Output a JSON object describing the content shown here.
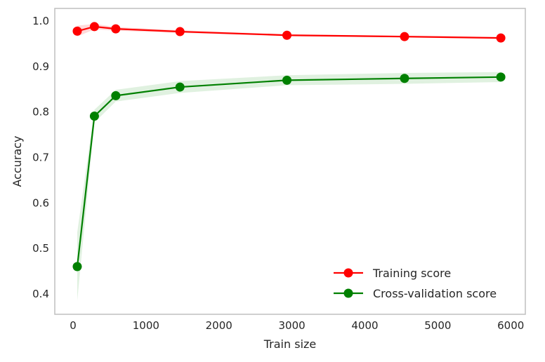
{
  "chart_data": {
    "type": "line",
    "title": "",
    "xlabel": "Train size",
    "ylabel": "Accuracy",
    "xlim": [
      -250,
      6200
    ],
    "ylim": [
      0.355,
      1.028
    ],
    "x_ticks": [
      0,
      1000,
      2000,
      3000,
      4000,
      5000,
      6000
    ],
    "y_ticks": [
      0.4,
      0.5,
      0.6,
      0.7,
      0.8,
      0.9,
      1.0
    ],
    "x_tick_labels": [
      "0",
      "1000",
      "2000",
      "3000",
      "4000",
      "5000",
      "6000"
    ],
    "y_tick_labels": [
      "0.4",
      "0.5",
      "0.6",
      "0.7",
      "0.8",
      "0.9",
      "1.0"
    ],
    "grid": false,
    "legend_position": "bottom-right",
    "x": [
      58,
      293,
      586,
      1466,
      2932,
      4544,
      5864
    ],
    "series": [
      {
        "name": "Training score",
        "color": "#ff0000",
        "band_color": "#ff0000",
        "values": [
          0.978,
          0.988,
          0.983,
          0.977,
          0.969,
          0.966,
          0.963
        ],
        "band_width": [
          0.012,
          0.006,
          0.004,
          0.003,
          0.002,
          0.002,
          0.002
        ]
      },
      {
        "name": "Cross-validation score",
        "color": "#008000",
        "band_color": "#2ca02c",
        "values": [
          0.46,
          0.791,
          0.836,
          0.855,
          0.87,
          0.874,
          0.877
        ],
        "band_width": [
          0.075,
          0.014,
          0.013,
          0.013,
          0.011,
          0.012,
          0.011
        ]
      }
    ]
  }
}
